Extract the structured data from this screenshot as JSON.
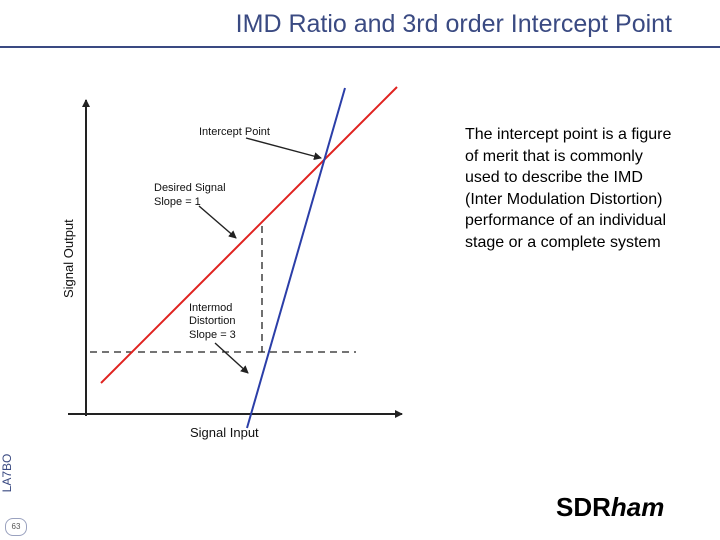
{
  "slide": {
    "title": "IMD Ratio and 3rd order Intercept Point",
    "description": "The intercept point is a figure of merit that is commonly used to describe the IMD (Inter Modulation Distortion) performance of an individual stage or a complete system",
    "side_label": "LA7BO",
    "page_number": "63",
    "brand_prefix": "SDR",
    "brand_suffix": "ham"
  },
  "diagram": {
    "x_axis_label": "Signal Input",
    "y_axis_label": "Signal Output",
    "annotations": {
      "intercept_point": "Intercept Point",
      "desired_signal_line1": "Desired Signal",
      "desired_signal_line2": "Slope = 1",
      "intermod_line1": "Intermod",
      "intermod_line2": "Distortion",
      "intermod_line3": "Slope = 3"
    },
    "colors": {
      "desired_signal_line": "#e0221f",
      "intermod_line": "#2b3ea8",
      "axes": "#222222",
      "title": "#3a4a82"
    }
  }
}
